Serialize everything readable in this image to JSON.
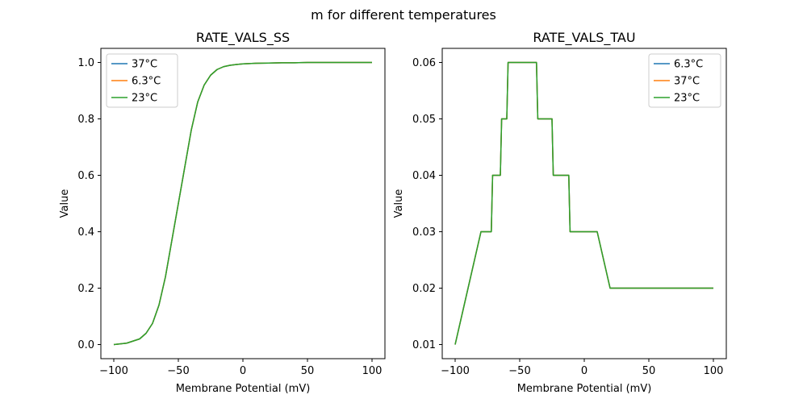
{
  "figure": {
    "suptitle": "m for different temperatures"
  },
  "chart_data": [
    {
      "type": "line",
      "title": "RATE_VALS_SS",
      "xlabel": "Membrane Potential (mV)",
      "ylabel": "Value",
      "xlim": [
        -110,
        110
      ],
      "ylim": [
        -0.05,
        1.05
      ],
      "xticks": [
        -100,
        -50,
        0,
        50,
        100
      ],
      "yticks": [
        0.0,
        0.2,
        0.4,
        0.6,
        0.8,
        1.0
      ],
      "xticklabels": [
        "−100",
        "−50",
        "0",
        "50",
        "100"
      ],
      "yticklabels": [
        "0.0",
        "0.2",
        "0.4",
        "0.6",
        "0.8",
        "1.0"
      ],
      "legend_position": "top-left",
      "series": [
        {
          "name": "37°C",
          "color": "#1f77b4",
          "x": [
            -100,
            -90,
            -80,
            -75,
            -70,
            -65,
            -60,
            -55,
            -50,
            -45,
            -40,
            -35,
            -30,
            -25,
            -20,
            -15,
            -10,
            -5,
            0,
            10,
            20,
            30,
            40,
            50,
            60,
            70,
            80,
            90,
            100
          ],
          "y": [
            0.0,
            0.005,
            0.02,
            0.04,
            0.075,
            0.14,
            0.24,
            0.37,
            0.5,
            0.63,
            0.76,
            0.86,
            0.92,
            0.955,
            0.975,
            0.985,
            0.99,
            0.993,
            0.995,
            0.997,
            0.998,
            0.999,
            0.999,
            1.0,
            1.0,
            1.0,
            1.0,
            1.0,
            1.0
          ]
        },
        {
          "name": "6.3°C",
          "color": "#ff7f0e",
          "x": [
            -100,
            -90,
            -80,
            -75,
            -70,
            -65,
            -60,
            -55,
            -50,
            -45,
            -40,
            -35,
            -30,
            -25,
            -20,
            -15,
            -10,
            -5,
            0,
            10,
            20,
            30,
            40,
            50,
            60,
            70,
            80,
            90,
            100
          ],
          "y": [
            0.0,
            0.005,
            0.02,
            0.04,
            0.075,
            0.14,
            0.24,
            0.37,
            0.5,
            0.63,
            0.76,
            0.86,
            0.92,
            0.955,
            0.975,
            0.985,
            0.99,
            0.993,
            0.995,
            0.997,
            0.998,
            0.999,
            0.999,
            1.0,
            1.0,
            1.0,
            1.0,
            1.0,
            1.0
          ]
        },
        {
          "name": "23°C",
          "color": "#2ca02c",
          "x": [
            -100,
            -90,
            -80,
            -75,
            -70,
            -65,
            -60,
            -55,
            -50,
            -45,
            -40,
            -35,
            -30,
            -25,
            -20,
            -15,
            -10,
            -5,
            0,
            10,
            20,
            30,
            40,
            50,
            60,
            70,
            80,
            90,
            100
          ],
          "y": [
            0.0,
            0.005,
            0.02,
            0.04,
            0.075,
            0.14,
            0.24,
            0.37,
            0.5,
            0.63,
            0.76,
            0.86,
            0.92,
            0.955,
            0.975,
            0.985,
            0.99,
            0.993,
            0.995,
            0.997,
            0.998,
            0.999,
            0.999,
            1.0,
            1.0,
            1.0,
            1.0,
            1.0,
            1.0
          ]
        }
      ]
    },
    {
      "type": "line",
      "title": "RATE_VALS_TAU",
      "xlabel": "Membrane Potential (mV)",
      "ylabel": "Value",
      "xlim": [
        -110,
        110
      ],
      "ylim": [
        0.0075,
        0.0625
      ],
      "xticks": [
        -100,
        -50,
        0,
        50,
        100
      ],
      "yticks": [
        0.01,
        0.02,
        0.03,
        0.04,
        0.05,
        0.06
      ],
      "xticklabels": [
        "−100",
        "−50",
        "0",
        "50",
        "100"
      ],
      "yticklabels": [
        "0.01",
        "0.02",
        "0.03",
        "0.04",
        "0.05",
        "0.06"
      ],
      "legend_position": "top-right",
      "series": [
        {
          "name": "6.3°C",
          "color": "#1f77b4",
          "x": [
            -100,
            -80,
            -72,
            -71,
            -65,
            -64,
            -60,
            -59,
            -37,
            -36,
            -25,
            -24,
            -12,
            -11,
            10,
            20,
            100
          ],
          "y": [
            0.01,
            0.03,
            0.03,
            0.04,
            0.04,
            0.05,
            0.05,
            0.06,
            0.06,
            0.05,
            0.05,
            0.04,
            0.04,
            0.03,
            0.03,
            0.02,
            0.02
          ]
        },
        {
          "name": "37°C",
          "color": "#ff7f0e",
          "x": [
            -100,
            -80,
            -72,
            -71,
            -65,
            -64,
            -60,
            -59,
            -37,
            -36,
            -25,
            -24,
            -12,
            -11,
            10,
            20,
            100
          ],
          "y": [
            0.01,
            0.03,
            0.03,
            0.04,
            0.04,
            0.05,
            0.05,
            0.06,
            0.06,
            0.05,
            0.05,
            0.04,
            0.04,
            0.03,
            0.03,
            0.02,
            0.02
          ]
        },
        {
          "name": "23°C",
          "color": "#2ca02c",
          "x": [
            -100,
            -80,
            -72,
            -71,
            -65,
            -64,
            -60,
            -59,
            -37,
            -36,
            -25,
            -24,
            -12,
            -11,
            10,
            20,
            100
          ],
          "y": [
            0.01,
            0.03,
            0.03,
            0.04,
            0.04,
            0.05,
            0.05,
            0.06,
            0.06,
            0.05,
            0.05,
            0.04,
            0.04,
            0.03,
            0.03,
            0.02,
            0.02
          ]
        }
      ]
    }
  ]
}
